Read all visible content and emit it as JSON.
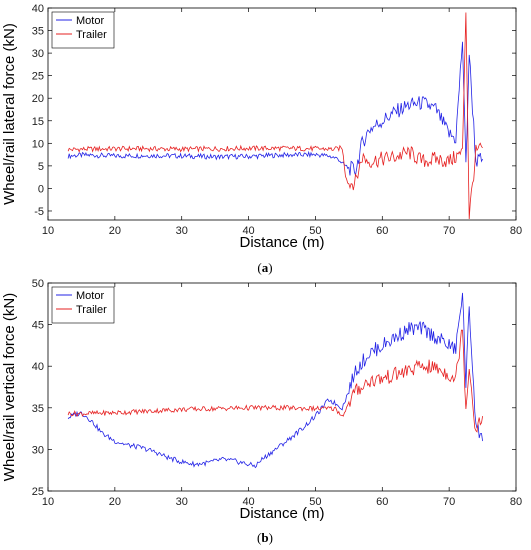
{
  "figure": {
    "panel_a_caption": "(a)",
    "panel_a_letter": "a",
    "panel_b_caption": "(b)",
    "panel_b_letter": "b"
  },
  "colors": {
    "motor": "#2323e6",
    "trailer": "#e62020"
  },
  "chart_data": [
    {
      "type": "line",
      "panel": "a",
      "xlabel": "Distance (m)",
      "ylabel": "Wheel/rail lateral force (kN)",
      "xlim": [
        10,
        80
      ],
      "ylim": [
        -7,
        40
      ],
      "xticks": [
        10,
        20,
        30,
        40,
        50,
        60,
        70,
        80
      ],
      "yticks": [
        -5,
        0,
        5,
        10,
        15,
        20,
        25,
        30,
        35,
        40
      ],
      "legend": {
        "placement": "top-left",
        "entries": [
          "Motor",
          "Trailer"
        ]
      },
      "series": [
        {
          "name": "Motor",
          "color": "#2323e6",
          "x": [
            13,
            15,
            18,
            20,
            25,
            30,
            35,
            40,
            45,
            50,
            52,
            53.5,
            54,
            55,
            56,
            57,
            58,
            60,
            62,
            64,
            66,
            68,
            70,
            71,
            72,
            72.5,
            73,
            74,
            75
          ],
          "y": [
            7.2,
            7.4,
            7.3,
            7.2,
            7.3,
            7.2,
            7.0,
            7.1,
            7.4,
            7.5,
            7.2,
            6.5,
            5.5,
            4.5,
            4.0,
            10.0,
            13.0,
            15.0,
            17.0,
            18.5,
            19.0,
            17.5,
            12.0,
            11.0,
            33.0,
            5.0,
            30.0,
            6.0,
            6.5
          ]
        },
        {
          "name": "Trailer",
          "color": "#e62020",
          "x": [
            13,
            15,
            20,
            25,
            30,
            35,
            40,
            45,
            50,
            53,
            54,
            54.5,
            55,
            56,
            57,
            58,
            60,
            62,
            64,
            66,
            68,
            70,
            71,
            72,
            72.5,
            73,
            74,
            75
          ],
          "y": [
            8.6,
            8.7,
            8.8,
            8.8,
            8.7,
            8.8,
            8.9,
            8.9,
            8.8,
            8.7,
            9.0,
            3.0,
            1.0,
            1.5,
            7.0,
            6.0,
            6.5,
            7.0,
            8.0,
            6.0,
            6.5,
            6.0,
            7.0,
            8.0,
            40.0,
            -6.0,
            8.0,
            9.0
          ]
        }
      ]
    },
    {
      "type": "line",
      "panel": "b",
      "xlabel": "Distance (m)",
      "ylabel": "Wheel/rail vertical force (kN)",
      "xlim": [
        10,
        80
      ],
      "ylim": [
        25,
        50
      ],
      "xticks": [
        10,
        20,
        30,
        40,
        50,
        60,
        70,
        80
      ],
      "yticks": [
        25,
        30,
        35,
        40,
        45,
        50
      ],
      "legend": {
        "placement": "top-left",
        "entries": [
          "Motor",
          "Trailer"
        ]
      },
      "series": [
        {
          "name": "Motor",
          "color": "#2323e6",
          "x": [
            13,
            14,
            15,
            16,
            17,
            18,
            20,
            22,
            24,
            26,
            28,
            30,
            32,
            34,
            36,
            38,
            40,
            41,
            42,
            44,
            46,
            48,
            50,
            52,
            53,
            54,
            55,
            56,
            58,
            60,
            62,
            64,
            66,
            68,
            70,
            71,
            72,
            72.5,
            73,
            74,
            75
          ],
          "y": [
            33.8,
            34.2,
            34.4,
            33.8,
            33.0,
            32.0,
            31.0,
            30.5,
            30.2,
            29.7,
            29.0,
            28.5,
            28.2,
            28.4,
            28.8,
            28.6,
            28.2,
            28.0,
            28.8,
            30.0,
            31.2,
            32.5,
            34.0,
            36.0,
            35.5,
            35.0,
            37.0,
            39.5,
            41.5,
            42.5,
            43.5,
            44.5,
            44.5,
            43.5,
            42.5,
            42.0,
            49.0,
            38.0,
            47.0,
            33.0,
            31.0
          ]
        },
        {
          "name": "Trailer",
          "color": "#e62020",
          "x": [
            13,
            15,
            20,
            25,
            30,
            35,
            40,
            45,
            50,
            53,
            54,
            55,
            56,
            58,
            60,
            62,
            64,
            66,
            68,
            70,
            71,
            72,
            72.5,
            73,
            74,
            75
          ],
          "y": [
            34.3,
            34.3,
            34.4,
            34.6,
            34.8,
            34.9,
            35.0,
            35.0,
            34.9,
            34.9,
            34.0,
            35.5,
            37.0,
            38.2,
            38.5,
            39.0,
            39.5,
            40.0,
            39.8,
            39.0,
            38.5,
            45.0,
            35.0,
            40.0,
            32.0,
            34.0
          ]
        }
      ]
    }
  ]
}
